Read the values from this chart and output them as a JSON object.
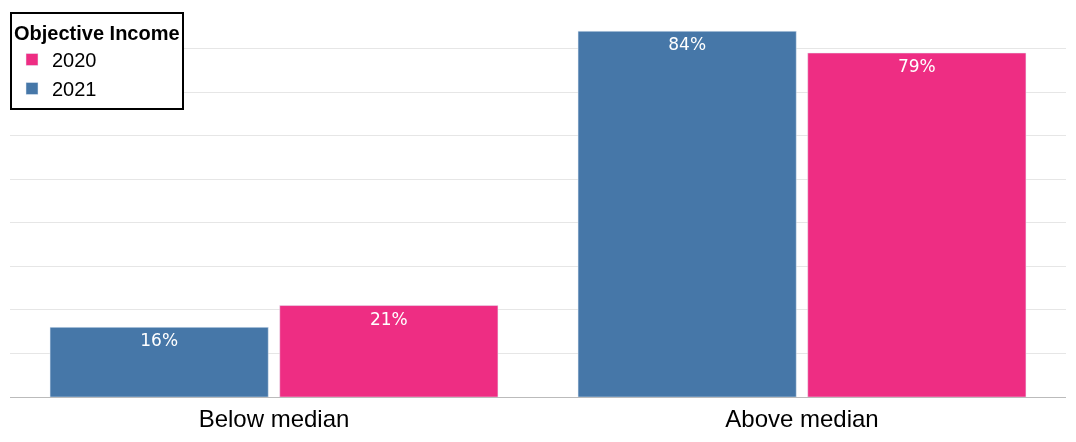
{
  "chart_data": {
    "type": "bar",
    "legend_title": "Objective Income",
    "categories": [
      "Below median",
      "Above median"
    ],
    "series": [
      {
        "name": "2021",
        "color": "#4677a8",
        "values": [
          16,
          84
        ],
        "value_labels": [
          "16%",
          "84%"
        ]
      },
      {
        "name": "2020",
        "color": "#ee2d83",
        "values": [
          21,
          79
        ],
        "value_labels": [
          "21%",
          "79%"
        ]
      }
    ],
    "tick_labels": "x",
    "grid": "y",
    "legend": "top left"
  }
}
